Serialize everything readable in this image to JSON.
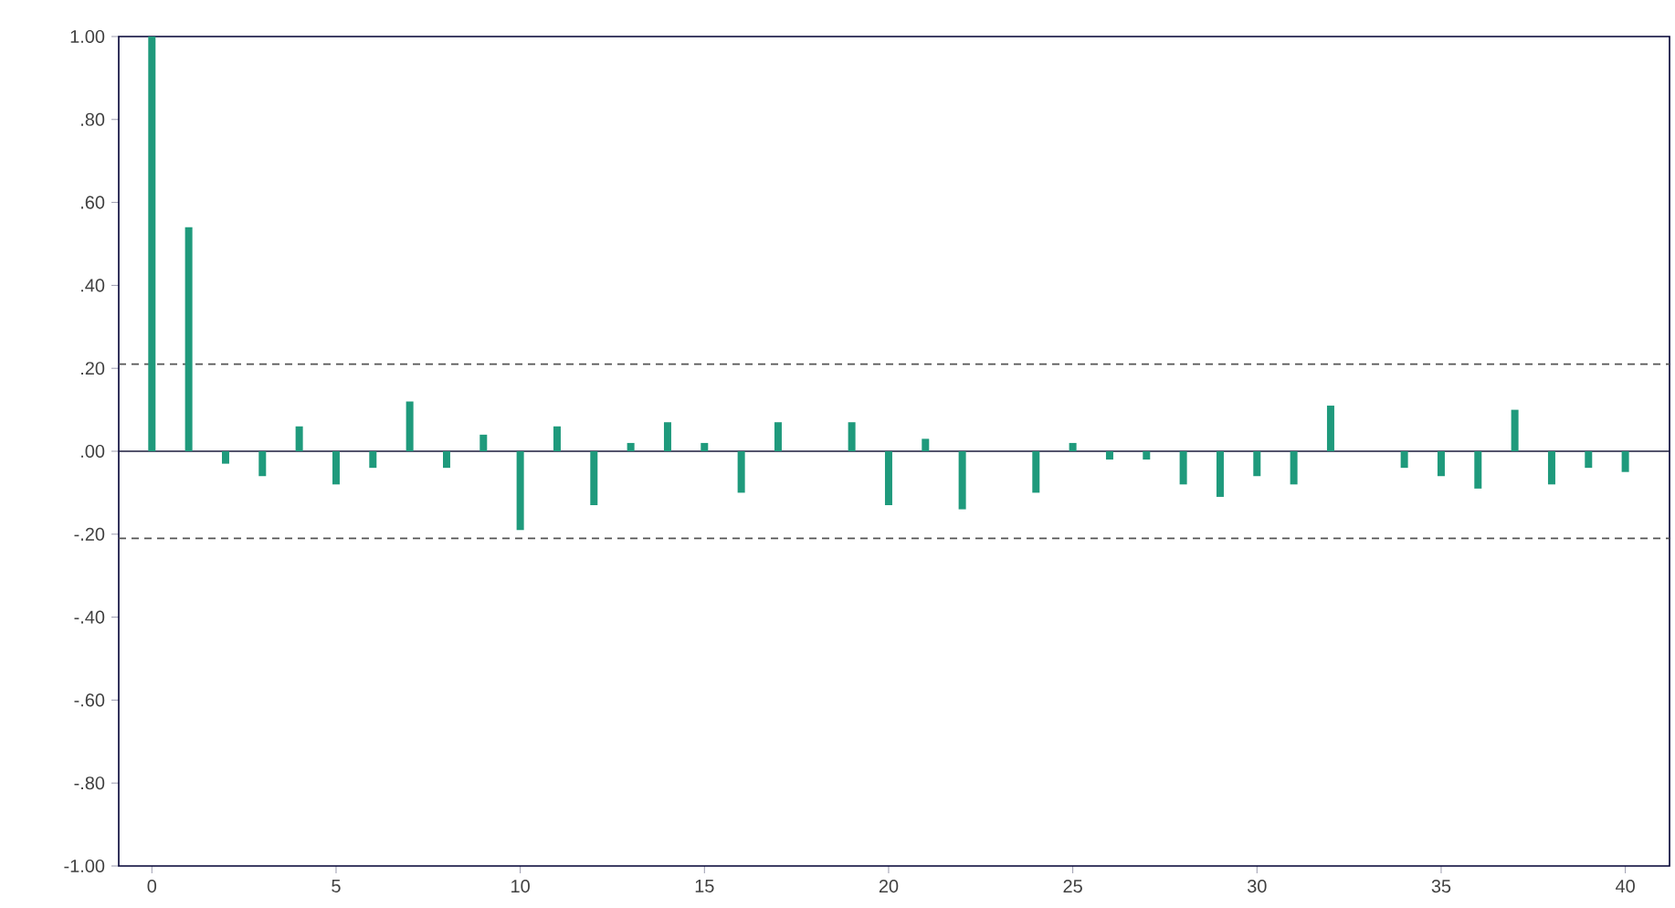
{
  "chart_data": {
    "type": "bar",
    "x": [
      0,
      1,
      2,
      3,
      4,
      5,
      6,
      7,
      8,
      9,
      10,
      11,
      12,
      13,
      14,
      15,
      16,
      17,
      18,
      19,
      20,
      21,
      22,
      23,
      24,
      25,
      26,
      27,
      28,
      29,
      30,
      31,
      32,
      33,
      34,
      35,
      36,
      37,
      38,
      39,
      40
    ],
    "values": [
      1.0,
      0.54,
      -0.03,
      -0.06,
      0.06,
      -0.08,
      -0.04,
      0.12,
      -0.04,
      0.04,
      -0.19,
      0.06,
      -0.13,
      0.02,
      0.07,
      0.02,
      -0.1,
      0.07,
      0.0,
      0.07,
      -0.13,
      0.03,
      -0.14,
      0.0,
      -0.1,
      0.02,
      -0.02,
      -0.02,
      -0.08,
      -0.11,
      -0.06,
      -0.08,
      0.11,
      0.0,
      -0.04,
      -0.06,
      -0.09,
      0.1,
      -0.08,
      -0.04,
      -0.05
    ],
    "color": "#1f9a7c",
    "xlim": [
      -0.9,
      41.2
    ],
    "ylim": [
      -1.0,
      1.0
    ],
    "xticks": [
      0,
      5,
      10,
      15,
      20,
      25,
      30,
      35,
      40
    ],
    "yticks": [
      {
        "value": -1.0,
        "label": "-1.00"
      },
      {
        "value": -0.8,
        "label": "-.80"
      },
      {
        "value": -0.6,
        "label": "-.60"
      },
      {
        "value": -0.4,
        "label": "-.40"
      },
      {
        "value": -0.2,
        "label": "-.20"
      },
      {
        "value": 0.0,
        "label": ".00"
      },
      {
        "value": 0.2,
        "label": ".20"
      },
      {
        "value": 0.4,
        "label": ".40"
      },
      {
        "value": 0.6,
        "label": ".60"
      },
      {
        "value": 0.8,
        "label": ".80"
      },
      {
        "value": 1.0,
        "label": "1.00"
      }
    ],
    "ref_lines": [
      {
        "axis": "y",
        "value": 0.21,
        "color": "#555555",
        "line_style": "dashed"
      },
      {
        "axis": "y",
        "value": -0.21,
        "color": "#555555",
        "line_style": "dashed"
      },
      {
        "axis": "y",
        "value": 0,
        "color": "#1c1c3c",
        "line_style": "solid"
      }
    ]
  }
}
